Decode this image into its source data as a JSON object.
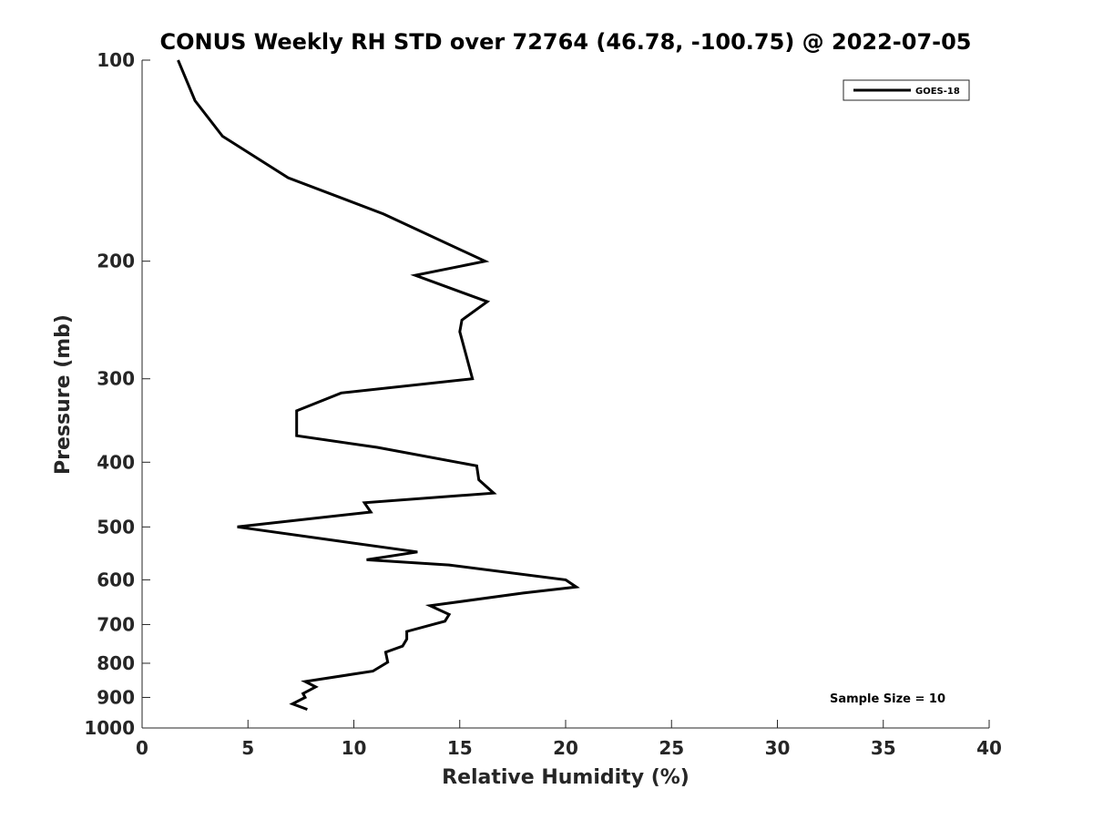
{
  "chart_data": {
    "type": "line",
    "title": "CONUS Weekly RH STD over 72764 (46.78, -100.75) @ 2022-07-05",
    "xlabel": "Relative Humidity (%)",
    "ylabel": "Pressure (mb)",
    "xlim": [
      0,
      40
    ],
    "ylim": [
      100,
      1000
    ],
    "yscale": "log",
    "y_reversed": true,
    "x_ticks": [
      0,
      5,
      10,
      15,
      20,
      25,
      30,
      35,
      40
    ],
    "y_ticks": [
      100,
      200,
      300,
      400,
      500,
      600,
      700,
      800,
      900,
      1000
    ],
    "grid": false,
    "legend": {
      "position": "top-right",
      "entries": [
        "GOES-18"
      ]
    },
    "annotation": "Sample Size = 10",
    "series": [
      {
        "name": "GOES-18",
        "color": "#000000",
        "x": [
          1.7,
          2.5,
          3.8,
          6.9,
          11.4,
          16.2,
          12.9,
          16.3,
          15.1,
          15.0,
          15.6,
          9.4,
          7.3,
          7.3,
          11.1,
          15.8,
          15.9,
          16.6,
          10.5,
          10.8,
          4.5,
          9.3,
          13.0,
          10.6,
          14.5,
          20.0,
          20.5,
          18.0,
          13.6,
          14.5,
          14.3,
          12.5,
          12.5,
          12.3,
          11.5,
          11.6,
          10.9,
          7.7,
          8.2,
          7.6,
          7.7,
          7.1,
          7.8
        ],
        "y": [
          100,
          115,
          130,
          150,
          170,
          200,
          210,
          230,
          245,
          255,
          300,
          315,
          335,
          365,
          380,
          405,
          425,
          445,
          460,
          475,
          500,
          525,
          545,
          560,
          570,
          600,
          615,
          628,
          656,
          676,
          692,
          717,
          736,
          754,
          770,
          797,
          822,
          852,
          868,
          888,
          900,
          920,
          938
        ]
      }
    ]
  }
}
